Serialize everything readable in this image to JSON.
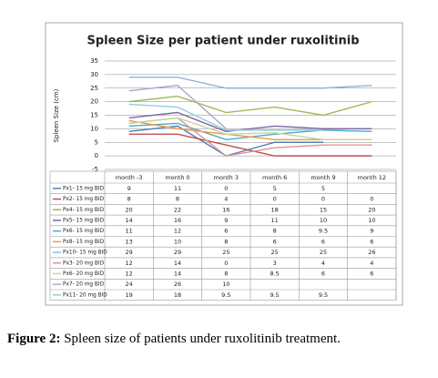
{
  "chart_data": {
    "type": "line",
    "title": "Spleen Size per patient under ruxolitinib",
    "y_label": "Spleen Size (cm)",
    "categories": [
      "month -3",
      "month 0",
      "month 3",
      "month 6",
      "month 9",
      "month 12"
    ],
    "ylim": [
      -5,
      35
    ],
    "yticks": [
      -5,
      0,
      5,
      10,
      15,
      20,
      25,
      30,
      35
    ],
    "grid": true,
    "series": [
      {
        "name": "Px1- 15 mg BID",
        "color": "#4f81bd",
        "values": [
          9,
          11,
          0,
          5,
          5,
          null
        ]
      },
      {
        "name": "Px2- 15 mg BID",
        "color": "#c0504d",
        "values": [
          8,
          8,
          4,
          0,
          0,
          0
        ]
      },
      {
        "name": "Px4- 15 mg BID",
        "color": "#9bbb59",
        "values": [
          20,
          22,
          16,
          18,
          15,
          20
        ]
      },
      {
        "name": "Px5- 15 mg BID",
        "color": "#8064a2",
        "values": [
          14,
          16,
          9,
          11,
          10,
          10
        ]
      },
      {
        "name": "Px6- 15 mg BID",
        "color": "#4bacc6",
        "values": [
          11,
          12,
          6,
          8,
          9.5,
          9
        ]
      },
      {
        "name": "Px8- 15 mg BID",
        "color": "#f79646",
        "values": [
          13,
          10,
          8,
          6,
          6,
          6
        ]
      },
      {
        "name": "Px10- 15 mg BID",
        "color": "#95b3d7",
        "values": [
          29,
          29,
          25,
          25,
          25,
          26
        ]
      },
      {
        "name": "Px3- 20 mg BID",
        "color": "#d99694",
        "values": [
          12,
          14,
          0,
          3,
          4,
          4
        ]
      },
      {
        "name": "Px6- 20 mg BID",
        "color": "#c3d69b",
        "values": [
          12,
          14,
          8,
          8.5,
          6,
          6
        ]
      },
      {
        "name": "Px7- 20 mg BID",
        "color": "#b3a2c7",
        "values": [
          24,
          26,
          10,
          null,
          null,
          null
        ]
      },
      {
        "name": "Px11- 20 mg BID",
        "color": "#93cddd",
        "values": [
          19,
          18,
          9.5,
          9.5,
          9.5,
          null
        ]
      }
    ]
  },
  "caption": {
    "label": "Figure 2:",
    "text": "Spleen size of patients under ruxolitinib treatment."
  }
}
